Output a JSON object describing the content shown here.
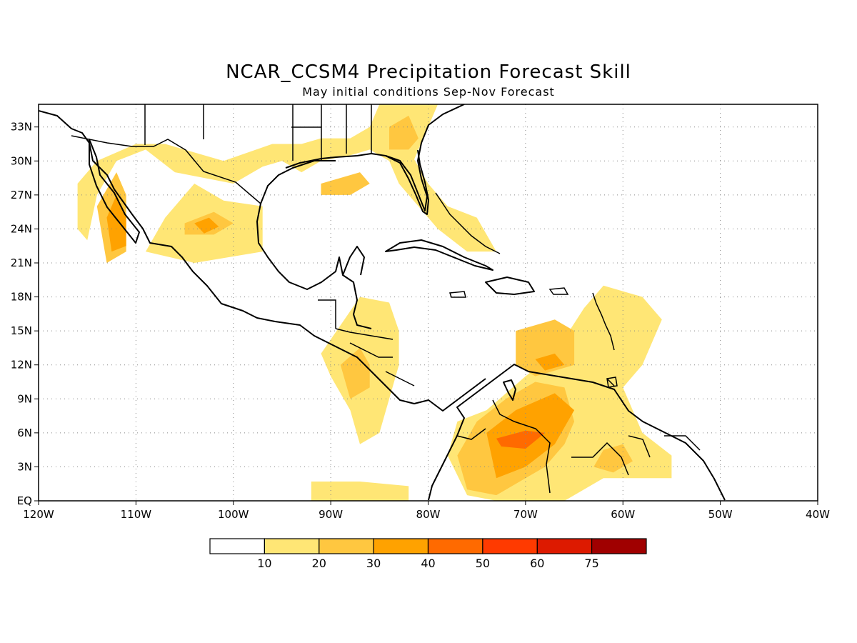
{
  "title": "NCAR_CCSM4 Precipitation Forecast Skill",
  "subtitle": "May initial conditions  Sep-Nov Forecast",
  "map": {
    "lon_range": [
      -120,
      -40
    ],
    "lat_range": [
      0,
      35
    ],
    "lon_ticks": [
      {
        "value": -120,
        "label": "120W"
      },
      {
        "value": -110,
        "label": "110W"
      },
      {
        "value": -100,
        "label": "100W"
      },
      {
        "value": -90,
        "label": "90W"
      },
      {
        "value": -80,
        "label": "80W"
      },
      {
        "value": -70,
        "label": "70W"
      },
      {
        "value": -60,
        "label": "60W"
      },
      {
        "value": -50,
        "label": "50W"
      },
      {
        "value": -40,
        "label": "40W"
      }
    ],
    "lat_ticks": [
      {
        "value": 0,
        "label": "EQ"
      },
      {
        "value": 3,
        "label": "3N"
      },
      {
        "value": 6,
        "label": "6N"
      },
      {
        "value": 9,
        "label": "9N"
      },
      {
        "value": 12,
        "label": "12N"
      },
      {
        "value": 15,
        "label": "15N"
      },
      {
        "value": 18,
        "label": "18N"
      },
      {
        "value": 21,
        "label": "21N"
      },
      {
        "value": 24,
        "label": "24N"
      },
      {
        "value": 27,
        "label": "27N"
      },
      {
        "value": 30,
        "label": "30N"
      },
      {
        "value": 33,
        "label": "33N"
      }
    ],
    "grid": "dotted"
  },
  "colorbar": {
    "colors": [
      "#ffffff",
      "#ffe675",
      "#ffc740",
      "#ffa200",
      "#ff6a00",
      "#ff3a00",
      "#dd1a00",
      "#a00000"
    ],
    "labels": [
      "10",
      "20",
      "30",
      "40",
      "50",
      "60",
      "75"
    ]
  },
  "skill_regions": [
    {
      "level": 1,
      "points": [
        [
          -115,
          23
        ],
        [
          -114,
          27
        ],
        [
          -112,
          30
        ],
        [
          -109,
          31
        ],
        [
          -106,
          29
        ],
        [
          -100,
          28
        ],
        [
          -97,
          29.5
        ],
        [
          -95,
          30
        ],
        [
          -93,
          29
        ],
        [
          -91,
          30
        ],
        [
          -88,
          30.5
        ],
        [
          -86,
          31
        ],
        [
          -84,
          30
        ],
        [
          -82,
          29
        ],
        [
          -80,
          33
        ],
        [
          -79,
          35
        ],
        [
          -85,
          35
        ],
        [
          -86,
          33
        ],
        [
          -88,
          32
        ],
        [
          -91,
          32
        ],
        [
          -93,
          31.5
        ],
        [
          -96,
          31.5
        ],
        [
          -101,
          30
        ],
        [
          -107,
          31.5
        ],
        [
          -110,
          31.5
        ],
        [
          -114,
          30
        ],
        [
          -116,
          28
        ],
        [
          -116,
          24
        ]
      ]
    },
    {
      "level": 1,
      "points": [
        [
          -104,
          28
        ],
        [
          -101,
          26.5
        ],
        [
          -97,
          26
        ],
        [
          -97,
          22
        ],
        [
          -104,
          21
        ],
        [
          -109,
          22
        ],
        [
          -107,
          25
        ]
      ]
    },
    {
      "level": 1,
      "points": [
        [
          -82,
          31
        ],
        [
          -80,
          28
        ],
        [
          -78,
          26
        ],
        [
          -75,
          25
        ],
        [
          -73,
          22
        ],
        [
          -76,
          22
        ],
        [
          -79,
          24
        ],
        [
          -81,
          26
        ],
        [
          -83,
          28
        ],
        [
          -84,
          30
        ]
      ]
    },
    {
      "level": 1,
      "points": [
        [
          -91,
          13
        ],
        [
          -89,
          15.5
        ],
        [
          -87,
          18
        ],
        [
          -84,
          17.5
        ],
        [
          -83,
          15
        ],
        [
          -83,
          12
        ],
        [
          -84,
          9
        ],
        [
          -85,
          6
        ],
        [
          -87,
          5
        ],
        [
          -88,
          8
        ],
        [
          -90,
          11
        ]
      ]
    },
    {
      "level": 1,
      "points": [
        [
          -74,
          8
        ],
        [
          -70,
          11
        ],
        [
          -67,
          13
        ],
        [
          -64,
          17
        ],
        [
          -62,
          19
        ],
        [
          -58,
          18
        ],
        [
          -56,
          16
        ],
        [
          -58,
          12
        ],
        [
          -60,
          10
        ],
        [
          -58,
          6
        ],
        [
          -55,
          4
        ],
        [
          -55,
          2
        ],
        [
          -62,
          2
        ],
        [
          -66,
          0
        ],
        [
          -73,
          0
        ],
        [
          -76,
          0.5
        ],
        [
          -78,
          4
        ],
        [
          -77,
          7
        ]
      ]
    },
    {
      "level": 1,
      "points": [
        [
          -92,
          1.7
        ],
        [
          -87,
          1.7
        ],
        [
          -82,
          1.3
        ],
        [
          -82,
          0
        ],
        [
          -92,
          0
        ]
      ]
    },
    {
      "level": 2,
      "points": [
        [
          -114,
          26
        ],
        [
          -112,
          29
        ],
        [
          -111,
          27
        ],
        [
          -111,
          22
        ],
        [
          -113,
          21
        ]
      ]
    },
    {
      "level": 2,
      "points": [
        [
          -105,
          24.5
        ],
        [
          -102,
          25.5
        ],
        [
          -100,
          24.5
        ],
        [
          -102,
          23.5
        ],
        [
          -105,
          23.5
        ]
      ]
    },
    {
      "level": 2,
      "points": [
        [
          -91,
          28
        ],
        [
          -87,
          29
        ],
        [
          -86,
          28
        ],
        [
          -88,
          27
        ],
        [
          -91,
          27
        ]
      ]
    },
    {
      "level": 2,
      "points": [
        [
          -84,
          33
        ],
        [
          -82,
          34
        ],
        [
          -81,
          32
        ],
        [
          -82,
          31
        ],
        [
          -84,
          31
        ]
      ]
    },
    {
      "level": 2,
      "points": [
        [
          -71,
          15
        ],
        [
          -67,
          16
        ],
        [
          -65,
          15
        ],
        [
          -65,
          12
        ],
        [
          -69,
          11
        ],
        [
          -71,
          12
        ]
      ]
    },
    {
      "level": 2,
      "points": [
        [
          -75,
          7
        ],
        [
          -72,
          9
        ],
        [
          -69,
          10.5
        ],
        [
          -66,
          10
        ],
        [
          -65,
          7
        ],
        [
          -66,
          5
        ],
        [
          -68,
          3
        ],
        [
          -70,
          2
        ],
        [
          -73,
          0.5
        ],
        [
          -76,
          1
        ],
        [
          -77,
          4
        ]
      ]
    },
    {
      "level": 2,
      "points": [
        [
          -89,
          12
        ],
        [
          -87,
          13.5
        ],
        [
          -86,
          12
        ],
        [
          -86,
          10
        ],
        [
          -88,
          9
        ]
      ]
    },
    {
      "level": 2,
      "points": [
        [
          -62,
          4.5
        ],
        [
          -60,
          5
        ],
        [
          -59,
          3.5
        ],
        [
          -61,
          2.5
        ],
        [
          -63,
          3
        ]
      ]
    },
    {
      "level": 3,
      "points": [
        [
          -113,
          25
        ],
        [
          -112,
          27
        ],
        [
          -111,
          25
        ],
        [
          -111,
          22.5
        ],
        [
          -112.5,
          22
        ]
      ]
    },
    {
      "level": 3,
      "points": [
        [
          -104,
          24.5
        ],
        [
          -102.5,
          25
        ],
        [
          -101.5,
          24.2
        ],
        [
          -103,
          23.6
        ]
      ]
    },
    {
      "level": 3,
      "points": [
        [
          -74,
          6
        ],
        [
          -71,
          8
        ],
        [
          -67,
          9.5
        ],
        [
          -65,
          8
        ],
        [
          -67,
          5
        ],
        [
          -70,
          3
        ],
        [
          -73,
          2
        ]
      ]
    },
    {
      "level": 3,
      "points": [
        [
          -69,
          12.5
        ],
        [
          -67,
          13
        ],
        [
          -66,
          12
        ],
        [
          -68,
          11.5
        ]
      ]
    },
    {
      "level": 4,
      "points": [
        [
          -73,
          5.5
        ],
        [
          -70,
          6.2
        ],
        [
          -68,
          6
        ],
        [
          -70,
          4.6
        ],
        [
          -72.5,
          4.8
        ]
      ]
    }
  ]
}
